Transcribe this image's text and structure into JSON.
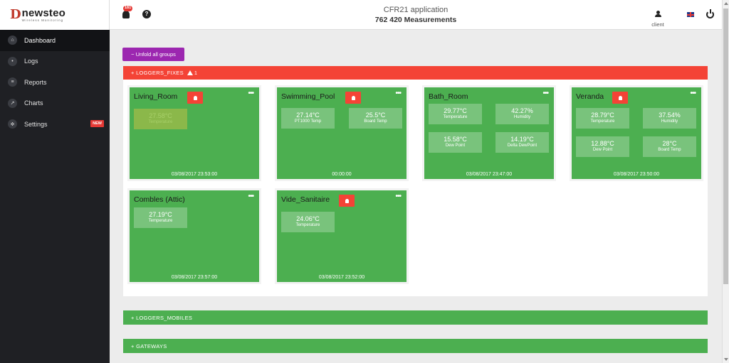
{
  "logo": {
    "mark": "D",
    "name": "newsteo",
    "tagline": "Wireless Monitoring"
  },
  "sidebar": {
    "items": [
      {
        "label": "Dashboard",
        "icon": "home-icon",
        "glyph": "⌂",
        "active": true
      },
      {
        "label": "Logs",
        "icon": "bell-icon",
        "glyph": "•"
      },
      {
        "label": "Reports",
        "icon": "reports-icon",
        "glyph": "≡"
      },
      {
        "label": "Charts",
        "icon": "chart-line-icon",
        "glyph": "↗"
      },
      {
        "label": "Settings",
        "icon": "gear-icon",
        "glyph": "✲",
        "badge": "NEW"
      }
    ]
  },
  "header": {
    "notification_count": "181",
    "help_glyph": "?",
    "title": "CFR21 application",
    "subtitle": "762 420 Measurements",
    "user_label": "client"
  },
  "main": {
    "unfold_button": "− Unfold all groups",
    "groups": [
      {
        "label": "+ LOGGERS_FIXES",
        "warning_count": "1",
        "color": "#f44336"
      },
      {
        "label": "+ LOGGERS_MOBILES",
        "color": "#4caf50"
      },
      {
        "label": "+ GATEWAYS",
        "color": "#4caf50"
      }
    ],
    "cards": [
      {
        "title": "Living_Room",
        "alarm": true,
        "menu": "•••",
        "tiles": [
          {
            "value": "27.58°C",
            "label": "Temperature",
            "stale": true
          }
        ],
        "timestamp": "03/08/2017  23:53:00"
      },
      {
        "title": "Swimming_Pool",
        "alarm": true,
        "menu": "•••",
        "tiles": [
          {
            "value": "27.14°C",
            "label": "PT1000 Temp"
          },
          {
            "value": "25.5°C",
            "label": "Board Temp"
          }
        ],
        "timestamp": "00:00:00"
      },
      {
        "title": "Bath_Room",
        "alarm": false,
        "menu": "•••",
        "tiles": [
          {
            "value": "29.77°C",
            "label": "Temperature"
          },
          {
            "value": "42.27%",
            "label": "Humidity"
          },
          {
            "value": "15.58°C",
            "label": "Dew Point"
          },
          {
            "value": "14.19°C",
            "label": "Delta DewPoint"
          }
        ],
        "timestamp": "03/08/2017  23:47:00"
      },
      {
        "title": "Veranda",
        "alarm": true,
        "menu": "•••",
        "tiles": [
          {
            "value": "28.79°C",
            "label": "Temperature"
          },
          {
            "value": "37.54%",
            "label": "Humidity"
          },
          {
            "value": "12.88°C",
            "label": "Dew Point"
          },
          {
            "value": "28°C",
            "label": "Board Temp"
          }
        ],
        "timestamp": "03/08/2017  23:50:00"
      },
      {
        "title": "Combles (Attic)",
        "alarm": false,
        "menu": "•••",
        "tiles": [
          {
            "value": "27.19°C",
            "label": "Temperature"
          }
        ],
        "timestamp": "03/08/2017  23:57:00"
      },
      {
        "title": "Vide_Sanitaire",
        "alarm": true,
        "menu": "•••",
        "tiles": [
          {
            "value": "24.06°C",
            "label": "Temperature"
          }
        ],
        "timestamp": "03/08/2017  23:52:00"
      }
    ]
  }
}
